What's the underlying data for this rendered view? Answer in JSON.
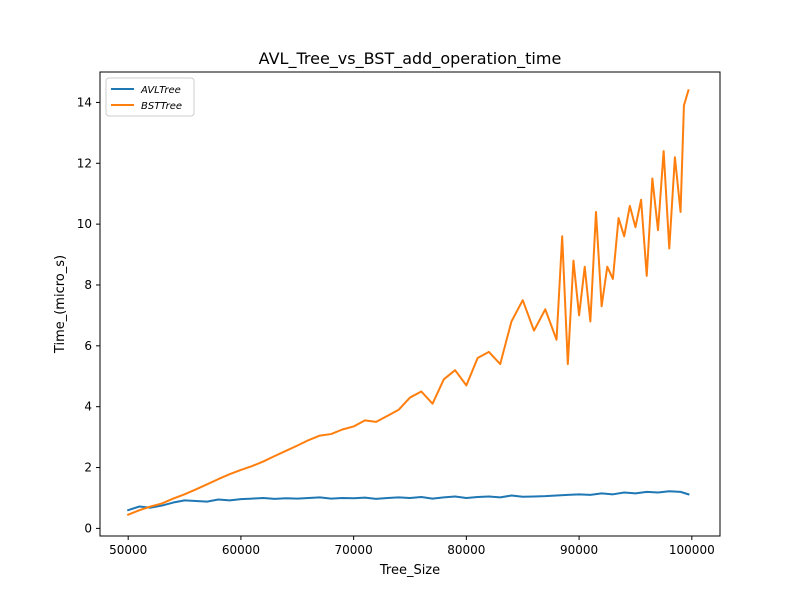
{
  "chart_data": {
    "type": "line",
    "title": "AVL_Tree_vs_BST_add_operation_time",
    "xlabel": "Tree_Size",
    "ylabel": "Time_(micro_s)",
    "xlim": [
      47500,
      102500
    ],
    "ylim": [
      -0.25,
      15.0
    ],
    "x_ticks": [
      50000,
      60000,
      70000,
      80000,
      90000,
      100000
    ],
    "y_ticks": [
      0,
      2,
      4,
      6,
      8,
      10,
      12,
      14
    ],
    "grid": false,
    "legend_position": "top-left",
    "series": [
      {
        "name": "AVLTree",
        "color": "#1f77b4",
        "x": [
          50000,
          51000,
          52000,
          53000,
          54000,
          55000,
          56000,
          57000,
          58000,
          59000,
          60000,
          61000,
          62000,
          63000,
          64000,
          65000,
          66000,
          67000,
          68000,
          69000,
          70000,
          71000,
          72000,
          73000,
          74000,
          75000,
          76000,
          77000,
          78000,
          79000,
          80000,
          81000,
          82000,
          83000,
          84000,
          85000,
          86000,
          87000,
          88000,
          89000,
          90000,
          91000,
          92000,
          93000,
          94000,
          95000,
          96000,
          97000,
          98000,
          99000,
          99700
        ],
        "y": [
          0.6,
          0.72,
          0.68,
          0.75,
          0.85,
          0.92,
          0.9,
          0.88,
          0.95,
          0.92,
          0.96,
          0.98,
          1.0,
          0.97,
          0.99,
          0.98,
          1.0,
          1.02,
          0.98,
          1.0,
          0.99,
          1.01,
          0.97,
          1.0,
          1.02,
          1.0,
          1.03,
          0.98,
          1.02,
          1.05,
          1.0,
          1.03,
          1.05,
          1.02,
          1.08,
          1.04,
          1.05,
          1.06,
          1.08,
          1.1,
          1.12,
          1.1,
          1.15,
          1.12,
          1.18,
          1.15,
          1.2,
          1.18,
          1.22,
          1.2,
          1.12
        ]
      },
      {
        "name": "BSTTree",
        "color": "#ff7f0e",
        "x": [
          50000,
          51000,
          52000,
          53000,
          54000,
          55000,
          56000,
          57000,
          58000,
          59000,
          60000,
          61000,
          62000,
          63000,
          64000,
          65000,
          66000,
          67000,
          68000,
          69000,
          70000,
          71000,
          72000,
          73000,
          74000,
          75000,
          76000,
          77000,
          78000,
          79000,
          80000,
          81000,
          82000,
          83000,
          84000,
          85000,
          86000,
          87000,
          88000,
          88500,
          89000,
          89500,
          90000,
          90500,
          91000,
          91500,
          92000,
          92500,
          93000,
          93500,
          94000,
          94500,
          95000,
          95500,
          96000,
          96500,
          97000,
          97500,
          98000,
          98500,
          99000,
          99300,
          99700
        ],
        "y": [
          0.45,
          0.6,
          0.72,
          0.82,
          0.98,
          1.12,
          1.28,
          1.45,
          1.62,
          1.78,
          1.92,
          2.05,
          2.2,
          2.38,
          2.55,
          2.72,
          2.9,
          3.05,
          3.1,
          3.25,
          3.35,
          3.55,
          3.5,
          3.7,
          3.9,
          4.3,
          4.5,
          4.1,
          4.9,
          5.2,
          4.7,
          5.6,
          5.8,
          5.4,
          6.8,
          7.5,
          6.5,
          7.2,
          6.2,
          9.6,
          5.4,
          8.8,
          7.0,
          8.6,
          6.8,
          10.4,
          7.3,
          8.6,
          8.2,
          10.2,
          9.6,
          10.6,
          9.9,
          10.8,
          8.3,
          11.5,
          9.8,
          12.4,
          9.2,
          12.2,
          10.4,
          13.9,
          14.4
        ]
      }
    ]
  }
}
